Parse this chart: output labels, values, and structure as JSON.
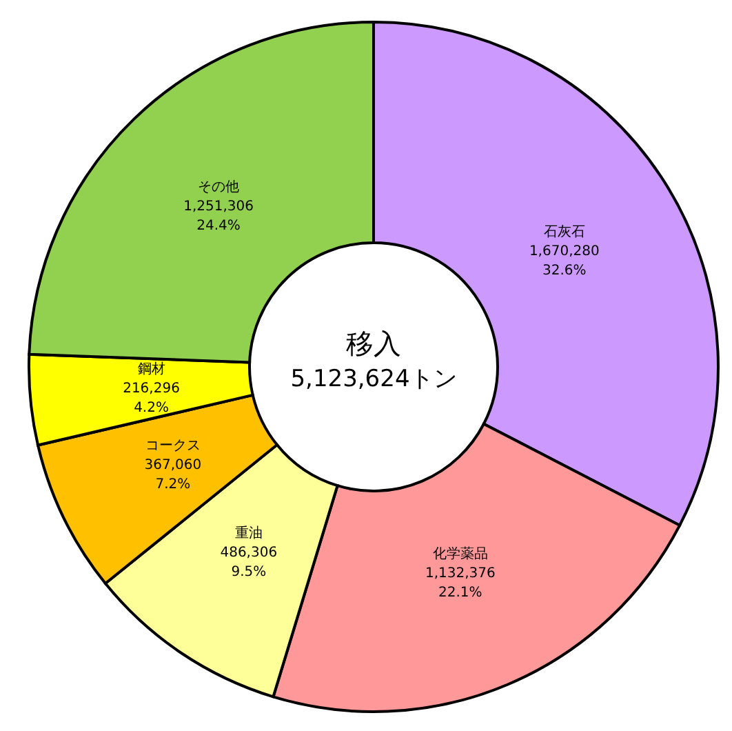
{
  "chart_data": {
    "type": "donut",
    "title": "移入",
    "subtitle": "5,123,624トン",
    "categories": [
      "石灰石",
      "化学薬品",
      "重油",
      "コークス",
      "鋼材",
      "その他"
    ],
    "values": [
      1670280,
      1132376,
      486306,
      367060,
      216296,
      1251306
    ],
    "colors": [
      "#cc99ff",
      "#ff9999",
      "#ffff99",
      "#ffc000",
      "#ffff00",
      "#92d050"
    ],
    "value_labels": [
      "1,670,280 32.6%",
      "1,132,376 22.1%",
      "486,306 9.5%",
      "367,060 7.2%",
      "216,296 4.2%",
      "1,251,306 24.4%"
    ]
  }
}
